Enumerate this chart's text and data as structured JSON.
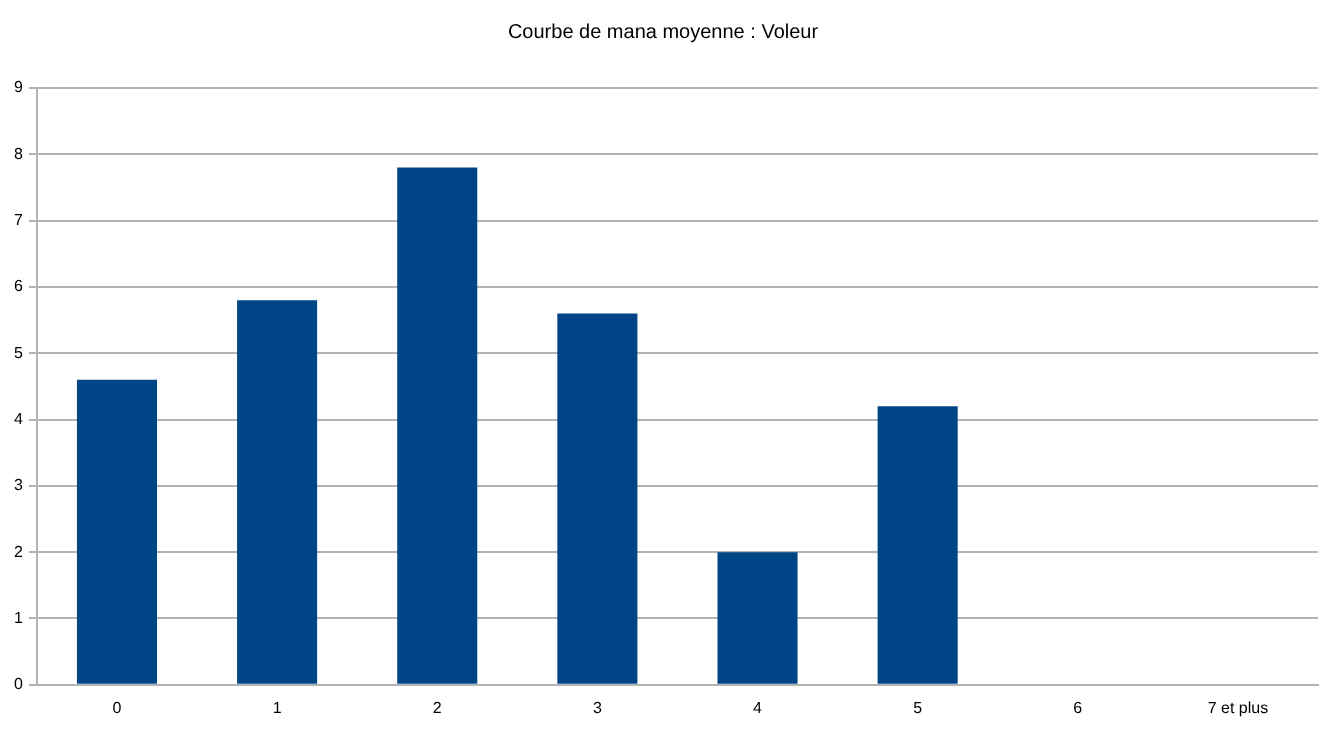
{
  "chart_data": {
    "type": "bar",
    "title": "Courbe de mana moyenne : Voleur",
    "categories": [
      "0",
      "1",
      "2",
      "3",
      "4",
      "5",
      "6",
      "7 et plus"
    ],
    "values": [
      4.6,
      5.8,
      7.8,
      5.6,
      2,
      4.2,
      0,
      0
    ],
    "color": "#004586",
    "ylim": [
      0,
      9
    ],
    "yticks": [
      0,
      1,
      2,
      3,
      4,
      5,
      6,
      7,
      8,
      9
    ],
    "grid": "y",
    "legend": false
  }
}
